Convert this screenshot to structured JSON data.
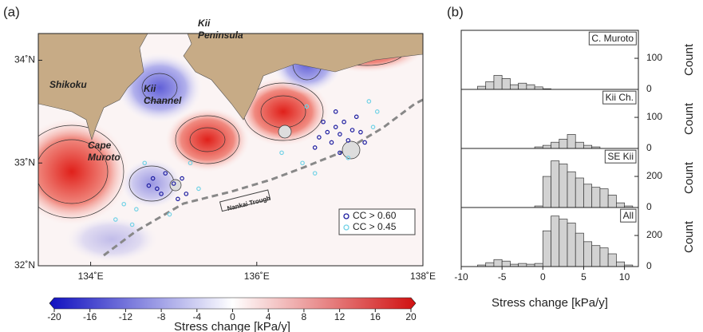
{
  "chart_data": [
    {
      "type": "map",
      "panel_label": "(a)",
      "xlim": [
        133.37,
        138
      ],
      "ylim": [
        32,
        34.26
      ],
      "xticks": [
        {
          "value": 134,
          "label": "134˚E"
        },
        {
          "value": 136,
          "label": "136˚E"
        },
        {
          "value": 138,
          "label": "138˚E"
        }
      ],
      "yticks": [
        {
          "value": 32,
          "label": "32˚N"
        },
        {
          "value": 33,
          "label": "33˚N"
        },
        {
          "value": 34,
          "label": "34˚N"
        }
      ],
      "annotations": [
        [
          "Shikoku"
        ],
        [
          "Kii",
          "Channel"
        ],
        [
          "Kii",
          "Peninsula"
        ],
        [
          "Cape",
          "Muroto"
        ],
        [
          "Nankai Trough"
        ]
      ],
      "series": [
        {
          "name": "CC > 0.60",
          "color": "#1c1ca0",
          "x": [
            136.75,
            136.85,
            136.9,
            136.95,
            137.0,
            137.05,
            137.1,
            137.15,
            137.2,
            137.25,
            136.8,
            136.7,
            137.0,
            137.3,
            136.95,
            134.75,
            134.8,
            134.9,
            134.85,
            135.0,
            135.1,
            135.15,
            134.7,
            135.05
          ],
          "y": [
            33.25,
            33.3,
            33.2,
            33.35,
            33.28,
            33.4,
            33.22,
            33.32,
            33.45,
            33.3,
            33.4,
            33.15,
            33.1,
            33.2,
            33.5,
            32.85,
            32.75,
            32.9,
            32.7,
            32.8,
            32.85,
            32.7,
            32.78,
            32.65
          ]
        },
        {
          "name": "CC > 0.45",
          "color": "#72d2e6",
          "x": [
            136.6,
            137.35,
            137.4,
            136.55,
            137.1,
            136.3,
            135.2,
            134.55,
            134.4,
            134.5,
            134.95,
            135.3,
            134.65,
            137.45,
            136.7,
            134.3
          ],
          "y": [
            33.55,
            33.6,
            33.35,
            33.0,
            33.05,
            33.1,
            33.0,
            32.55,
            32.6,
            32.4,
            32.5,
            32.75,
            33.0,
            33.5,
            32.9,
            32.45
          ]
        }
      ],
      "colorbar": {
        "lim": [
          -20,
          20
        ],
        "ticks": [
          -20,
          -16,
          -12,
          -8,
          -4,
          0,
          4,
          8,
          12,
          16,
          20
        ],
        "label": "Stress change [kPa/y]"
      }
    },
    {
      "type": "histogram",
      "panel_label": "(b)",
      "label": "C. Muroto",
      "ylabel": "Count",
      "xlim": [
        -10,
        11.7
      ],
      "ylim": [
        0,
        190
      ],
      "yticks": [
        0,
        100
      ],
      "bins": [
        -8,
        -7,
        -6,
        -5,
        -4,
        -3,
        -2,
        -1,
        0,
        1,
        2,
        3,
        4,
        5,
        6,
        7,
        8,
        9,
        10,
        11
      ],
      "values": [
        10,
        25,
        45,
        35,
        15,
        20,
        15,
        8,
        2,
        0,
        0,
        0,
        0,
        0,
        0,
        0,
        0,
        0,
        0
      ]
    },
    {
      "type": "histogram",
      "label": "Kii Ch.",
      "ylabel": "Count",
      "xlim": [
        -10,
        11.7
      ],
      "ylim": [
        0,
        190
      ],
      "yticks": [
        0,
        100
      ],
      "bins": [
        -8,
        -7,
        -6,
        -5,
        -4,
        -3,
        -2,
        -1,
        0,
        1,
        2,
        3,
        4,
        5,
        6,
        7,
        8,
        9,
        10,
        11
      ],
      "values": [
        0,
        0,
        0,
        0,
        0,
        0,
        0,
        5,
        10,
        20,
        30,
        45,
        20,
        10,
        5,
        0,
        0,
        0,
        0
      ]
    },
    {
      "type": "histogram",
      "label": "SE Kii",
      "ylabel": "Count",
      "xlim": [
        -10,
        11.7
      ],
      "ylim": [
        0,
        380
      ],
      "yticks": [
        0,
        200
      ],
      "bins": [
        -8,
        -7,
        -6,
        -5,
        -4,
        -3,
        -2,
        -1,
        0,
        1,
        2,
        3,
        4,
        5,
        6,
        7,
        8,
        9,
        10,
        11
      ],
      "values": [
        0,
        0,
        0,
        0,
        0,
        0,
        0,
        10,
        200,
        300,
        280,
        230,
        190,
        150,
        130,
        120,
        80,
        30,
        10
      ]
    },
    {
      "type": "histogram",
      "label": "All",
      "ylabel": "Count",
      "xlim": [
        -10,
        11.7
      ],
      "ylim": [
        0,
        380
      ],
      "yticks": [
        0,
        200
      ],
      "xticks": [
        -10,
        -5,
        0,
        5,
        10
      ],
      "xlabel": "Stress change [kPa/y]",
      "bins": [
        -8,
        -7,
        -6,
        -5,
        -4,
        -3,
        -2,
        -1,
        0,
        1,
        2,
        3,
        4,
        5,
        6,
        7,
        8,
        9,
        10,
        11
      ],
      "values": [
        10,
        25,
        45,
        35,
        15,
        20,
        15,
        20,
        230,
        325,
        305,
        280,
        215,
        160,
        135,
        120,
        82,
        30,
        10
      ]
    }
  ]
}
